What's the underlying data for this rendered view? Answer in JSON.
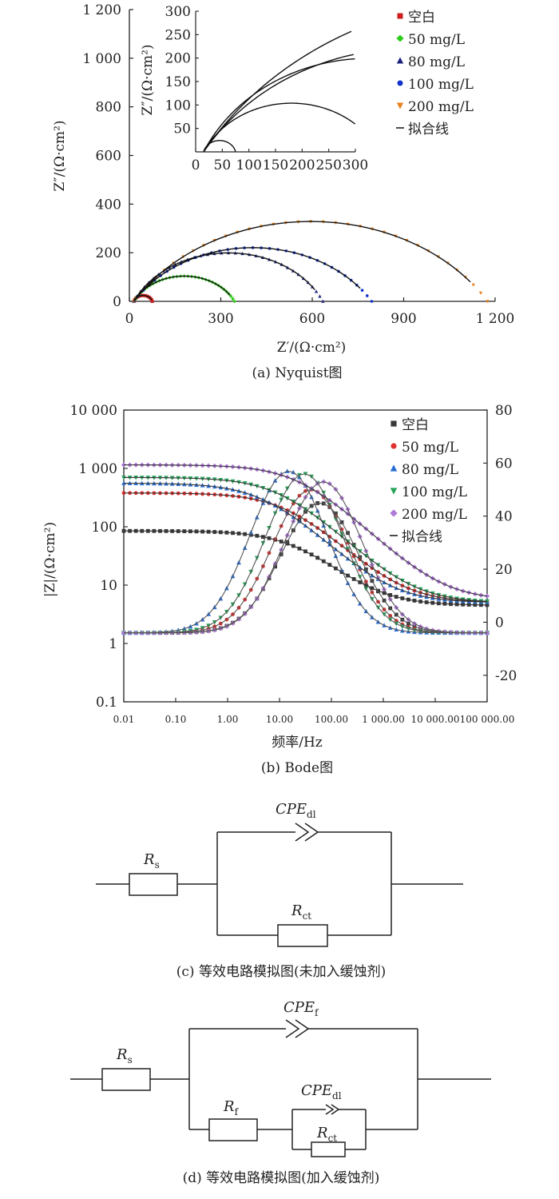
{
  "chart_data": [
    {
      "id": "nyquist",
      "type": "scatter",
      "caption": "(a) Nyquist图",
      "xlabel": "Z′/(Ω·cm²)",
      "ylabel": "Z″/(Ω·cm²)",
      "xlim": [
        0,
        1200
      ],
      "ylim": [
        0,
        1200
      ],
      "x_ticks": [
        "0",
        "300",
        "600",
        "900",
        "1 200"
      ],
      "y_ticks": [
        "0",
        "200",
        "400",
        "600",
        "800",
        "1 000",
        "1 200"
      ],
      "legend": [
        "空白",
        "50 mg/L",
        "80 mg/L",
        "100 mg/L",
        "200 mg/L",
        "拟合线"
      ],
      "series": [
        {
          "name": "空白",
          "color": "#cc1f1f",
          "marker": "square",
          "rs": 15,
          "rct": 60,
          "depression": 0.82
        },
        {
          "name": "50 mg/L",
          "color": "#2ecc1a",
          "marker": "diamond",
          "rs": 15,
          "rct": 330,
          "depression": 0.6
        },
        {
          "name": "80 mg/L",
          "color": "#1a237e",
          "marker": "triangle",
          "rs": 15,
          "rct": 620,
          "depression": 0.62
        },
        {
          "name": "100 mg/L",
          "color": "#1133cc",
          "marker": "circle",
          "rs": 15,
          "rct": 780,
          "depression": 0.5
        },
        {
          "name": "200 mg/L",
          "color": "#e8821e",
          "marker": "triangle-down",
          "rs": 15,
          "rct": 1160,
          "depression": 0.5
        }
      ],
      "inset": {
        "xlim": [
          0,
          300
        ],
        "ylim": [
          0,
          300
        ],
        "x_ticks": [
          "0",
          "50",
          "100",
          "150",
          "200",
          "250",
          "300"
        ],
        "y_ticks": [
          "50",
          "100",
          "150",
          "200",
          "250",
          "300"
        ],
        "ylabel": "Z″/(Ω·cm²)"
      }
    },
    {
      "id": "bode",
      "type": "scatter",
      "caption": "(b) Bode图",
      "xlabel": "频率/Hz",
      "ylabel": "|Z|/(Ω·cm²)",
      "xscale": "log",
      "xlim": [
        0.01,
        100000
      ],
      "ylim_left": [
        0.1,
        10000
      ],
      "ylim_right": [
        -30,
        80
      ],
      "x_ticks": [
        "0.01",
        "0.10",
        "1.00",
        "10.00",
        "100.00",
        "1 000.00",
        "10 000.00",
        "100 000.00"
      ],
      "y_ticks_left": [
        "0.1",
        "1",
        "10",
        "100",
        "1 000",
        "10 000"
      ],
      "y_ticks_right": [
        "-20",
        "0",
        "20",
        "40",
        "60",
        "80"
      ],
      "legend": [
        "空白",
        "50 mg/L",
        "80 mg/L",
        "100 mg/L",
        "200 mg/L",
        "拟合线"
      ],
      "series": [
        {
          "name": "空白",
          "color": "#3a3a3a",
          "marker": "square",
          "z_low": 85,
          "z_high": 4.5,
          "phase_peak": 45,
          "peak_freq": 60
        },
        {
          "name": "50 mg/L",
          "color": "#e03030",
          "marker": "circle",
          "z_low": 380,
          "z_high": 5,
          "phase_peak": 50,
          "peak_freq": 40
        },
        {
          "name": "80 mg/L",
          "color": "#2a6fd6",
          "marker": "triangle",
          "z_low": 560,
          "z_high": 5,
          "phase_peak": 57,
          "peak_freq": 15
        },
        {
          "name": "100 mg/L",
          "color": "#27a35a",
          "marker": "triangle-down",
          "z_low": 700,
          "z_high": 5,
          "phase_peak": 56,
          "peak_freq": 30
        },
        {
          "name": "200 mg/L",
          "color": "#b07ad8",
          "marker": "diamond",
          "z_low": 1150,
          "z_high": 5.5,
          "phase_peak": 53,
          "peak_freq": 70
        }
      ]
    }
  ],
  "circuits": {
    "c": {
      "caption": "(c) 等效电路模拟图(未加入缓蚀剂)",
      "rs": {
        "main": "R",
        "sub": "s"
      },
      "cpe": {
        "main": "CPE",
        "sub": "dl"
      },
      "rct": {
        "main": "R",
        "sub": "ct"
      }
    },
    "d": {
      "caption": "(d) 等效电路模拟图(加入缓蚀剂)",
      "rs": {
        "main": "R",
        "sub": "s"
      },
      "cpe_f": {
        "main": "CPE",
        "sub": "f"
      },
      "rf": {
        "main": "R",
        "sub": "f"
      },
      "cpe_dl": {
        "main": "CPE",
        "sub": "dl"
      },
      "rct": {
        "main": "R",
        "sub": "ct"
      }
    }
  }
}
